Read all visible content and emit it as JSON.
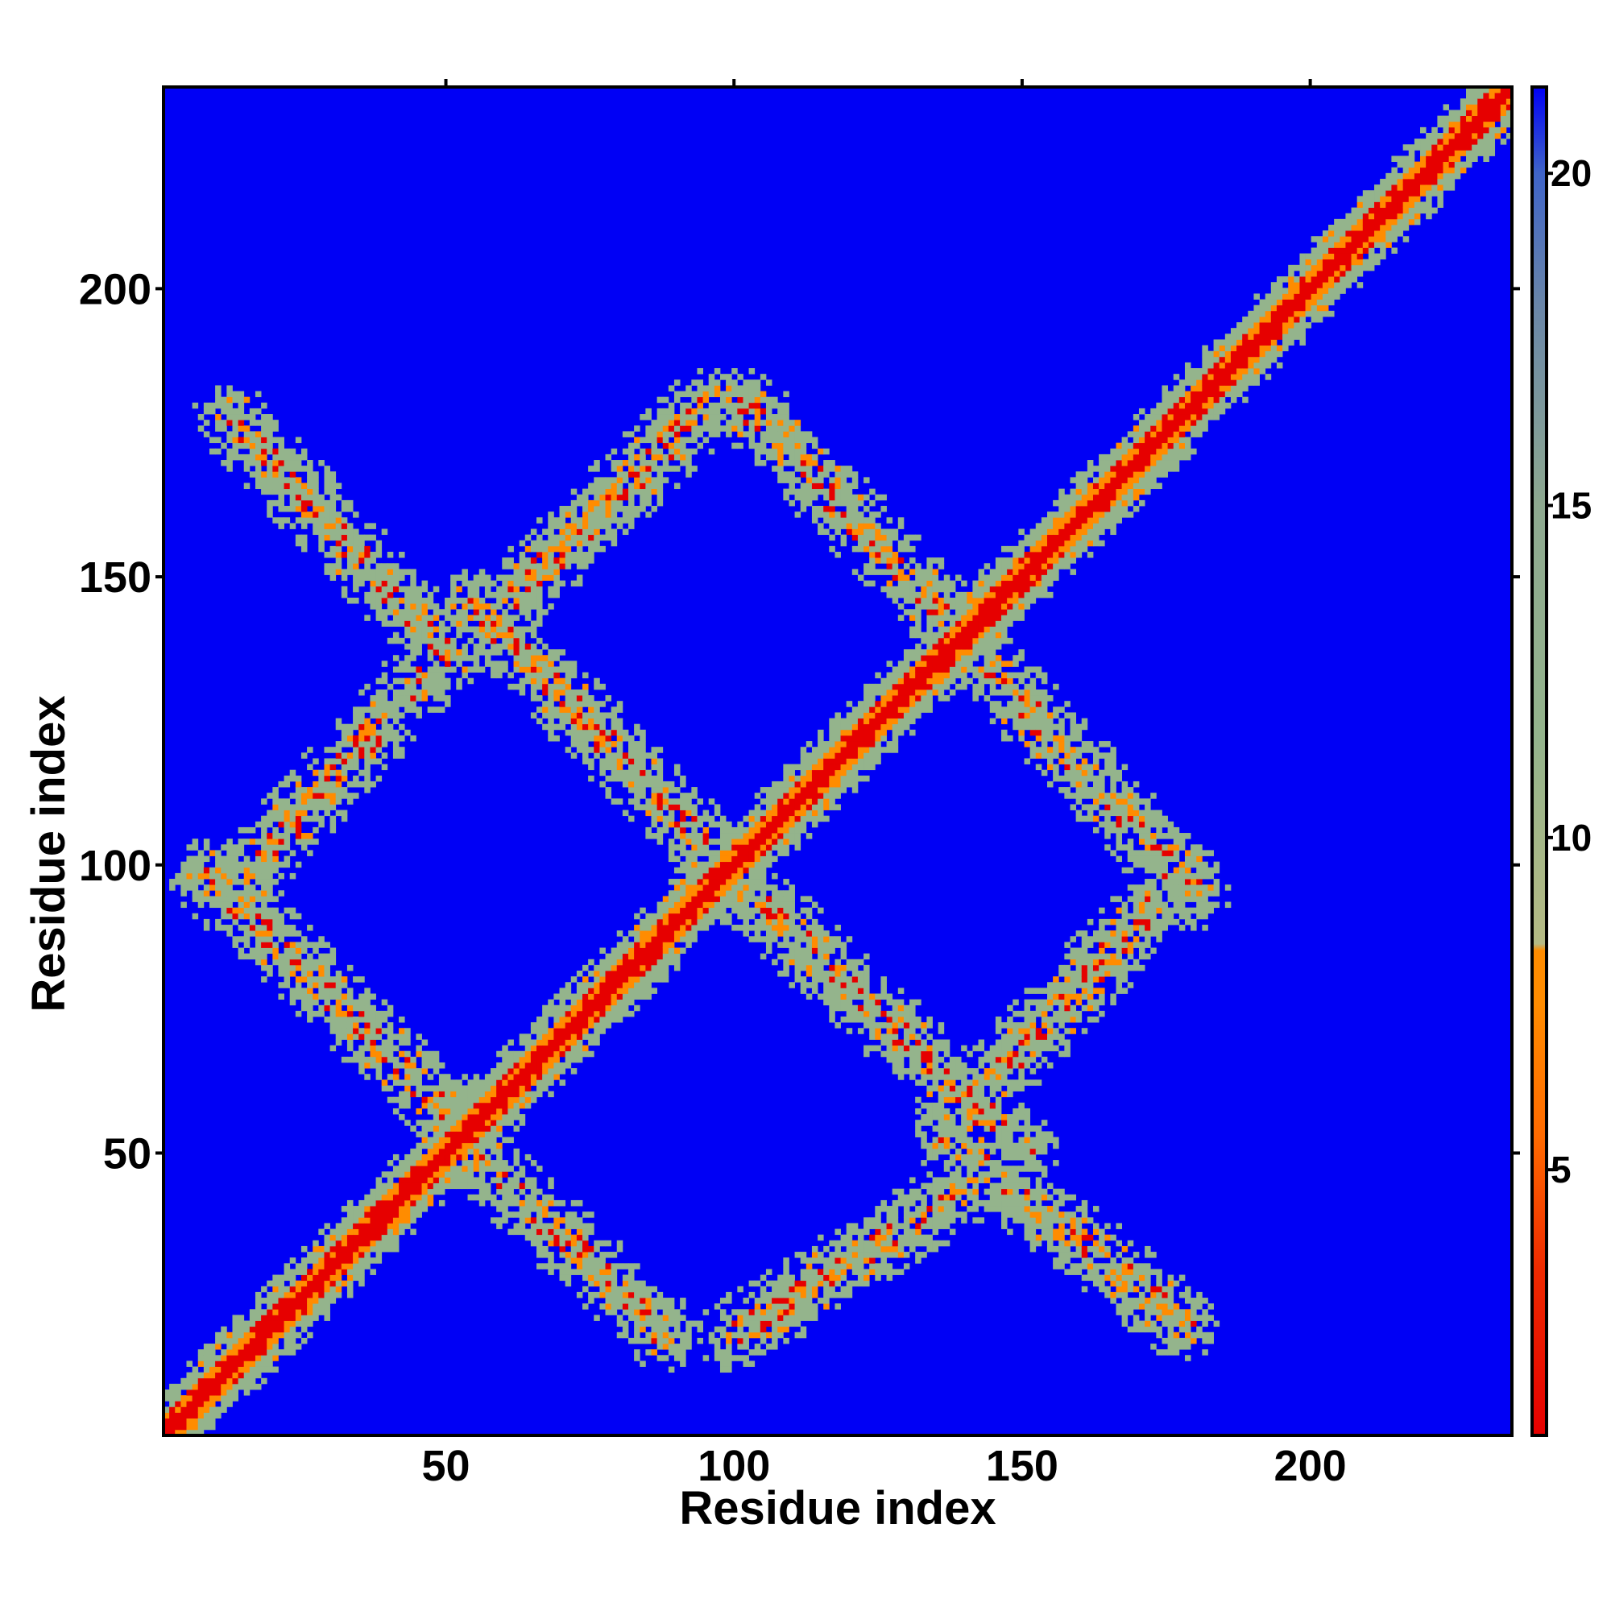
{
  "chart_data": {
    "type": "heatmap",
    "title": "",
    "xlabel": "Residue index",
    "ylabel": "Residue index",
    "xlim": [
      1,
      235
    ],
    "ylim": [
      1,
      235
    ],
    "x_ticks": [
      50,
      100,
      150,
      200
    ],
    "y_ticks": [
      50,
      100,
      150,
      200
    ],
    "colorbar": {
      "range": [
        1,
        21.3
      ],
      "ticks": [
        5,
        10,
        15,
        20
      ],
      "colors": {
        "near": "#e60000",
        "mid": "#ff8c00",
        "far": "#94b48c",
        "background": "#0000f5"
      }
    },
    "features": {
      "diagonal": {
        "from": 1,
        "to": 235
      },
      "off_diagonal_bands": [
        {
          "direction": "antiparallel",
          "x": [
            12,
            50
          ],
          "y": [
            178,
            137
          ]
        },
        {
          "direction": "antiparallel",
          "x": [
            8,
            52
          ],
          "y": [
            98,
            55
          ]
        },
        {
          "direction": "antiparallel",
          "x": [
            52,
            88
          ],
          "y": [
            52,
            18
          ]
        },
        {
          "direction": "antiparallel",
          "x": [
            55,
            98
          ],
          "y": [
            145,
            100
          ]
        },
        {
          "direction": "antiparallel",
          "x": [
            95,
            145
          ],
          "y": [
            102,
            55
          ]
        },
        {
          "direction": "antiparallel",
          "x": [
            102,
            135
          ],
          "y": [
            180,
            145
          ]
        },
        {
          "direction": "antiparallel",
          "x": [
            135,
            180
          ],
          "y": [
            145,
            95
          ]
        },
        {
          "direction": "antiparallel",
          "x": [
            138,
            178
          ],
          "y": [
            52,
            20
          ]
        },
        {
          "direction": "parallel",
          "x": [
            15,
            52
          ],
          "y": [
            98,
            140
          ]
        },
        {
          "direction": "parallel",
          "x": [
            55,
            95
          ],
          "y": [
            140,
            180
          ]
        },
        {
          "direction": "parallel",
          "x": [
            100,
            150
          ],
          "y": [
            18,
            50
          ]
        },
        {
          "direction": "parallel",
          "x": [
            138,
            178
          ],
          "y": [
            55,
            98
          ]
        }
      ]
    }
  }
}
